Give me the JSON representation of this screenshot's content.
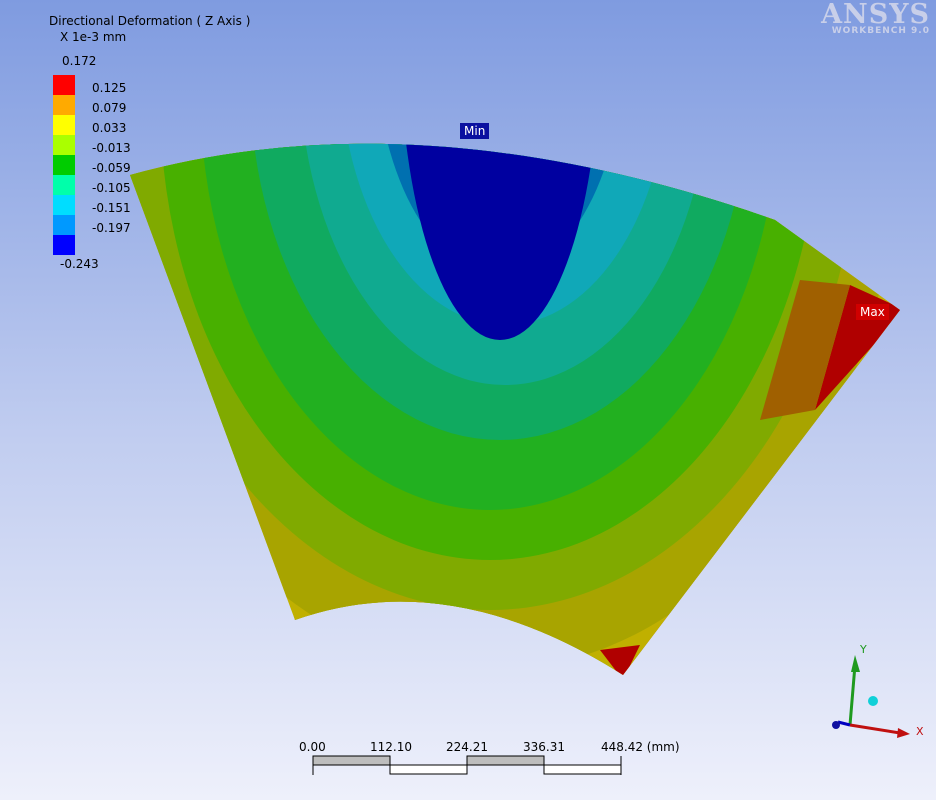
{
  "legend": {
    "title": "Directional Deformation ( Z Axis )",
    "units": "X 1e-3 mm",
    "max_value": "0.172",
    "min_value": "-0.243",
    "entries": [
      {
        "label": "0.125",
        "color": "#ff0000"
      },
      {
        "label": "0.079",
        "color": "#ffaa00"
      },
      {
        "label": "0.033",
        "color": "#ffff00"
      },
      {
        "label": "-0.013",
        "color": "#aaff00"
      },
      {
        "label": "-0.059",
        "color": "#00cc00"
      },
      {
        "label": "-0.105",
        "color": "#00ffaa"
      },
      {
        "label": "-0.151",
        "color": "#00ddff"
      },
      {
        "label": "-0.197",
        "color": "#0099ff"
      },
      {
        "label": "",
        "color": "#0000ff"
      }
    ]
  },
  "logo": {
    "brand": "ANSYS",
    "product": "WORKBENCH 9.0"
  },
  "probes": {
    "min_label": "Min",
    "max_label": "Max"
  },
  "scale_bar": {
    "ticks": [
      "0.00",
      "112.10",
      "224.21",
      "336.31",
      "448.42 (mm)"
    ]
  },
  "triad": {
    "y_label": "Y",
    "x_label": "X"
  }
}
